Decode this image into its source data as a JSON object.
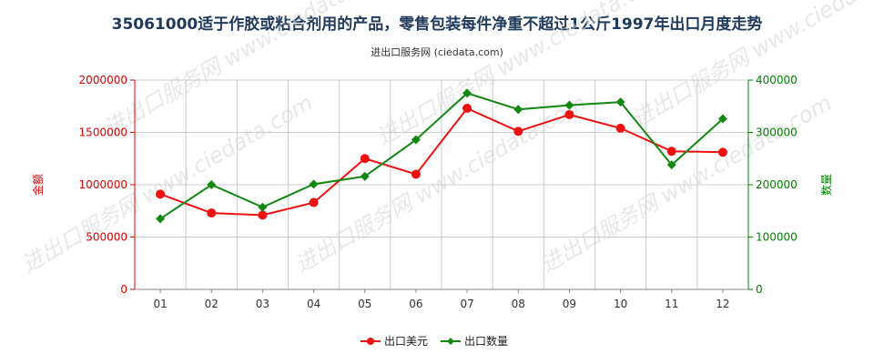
{
  "header": {
    "title": "35061000适于作胶或粘合剂用的产品，零售包装每件净重不超过1公斤1997年出口月度走势",
    "subtitle": "进出口服务网 (ciedata.com)"
  },
  "watermark": "进出口服务网 www.ciedata.com",
  "colors": {
    "left_axis": "#dd0000",
    "right_axis": "#008000",
    "series_value": "#ee1111",
    "series_qty": "#118811"
  },
  "chart_data": {
    "type": "line",
    "categories": [
      "01",
      "02",
      "03",
      "04",
      "05",
      "06",
      "07",
      "08",
      "09",
      "10",
      "11",
      "12"
    ],
    "left_axis": {
      "label": "金额",
      "ylim": [
        0,
        2000000
      ],
      "ticks": [
        "0",
        "500000",
        "1000000",
        "1500000",
        "2000000"
      ]
    },
    "right_axis": {
      "label": "数量",
      "ylim": [
        0,
        400000
      ],
      "ticks": [
        "0",
        "100000",
        "200000",
        "300000",
        "400000"
      ]
    },
    "series": [
      {
        "name": "出口美元",
        "axis": "left",
        "values": [
          910000,
          730000,
          710000,
          830000,
          1250000,
          1100000,
          1730000,
          1510000,
          1670000,
          1540000,
          1320000,
          1310000
        ]
      },
      {
        "name": "出口数量",
        "axis": "right",
        "values": [
          135000,
          200000,
          157000,
          201000,
          216000,
          286000,
          375000,
          344000,
          352000,
          358000,
          238000,
          326000
        ]
      }
    ],
    "grid": true,
    "legend_position": "bottom"
  }
}
